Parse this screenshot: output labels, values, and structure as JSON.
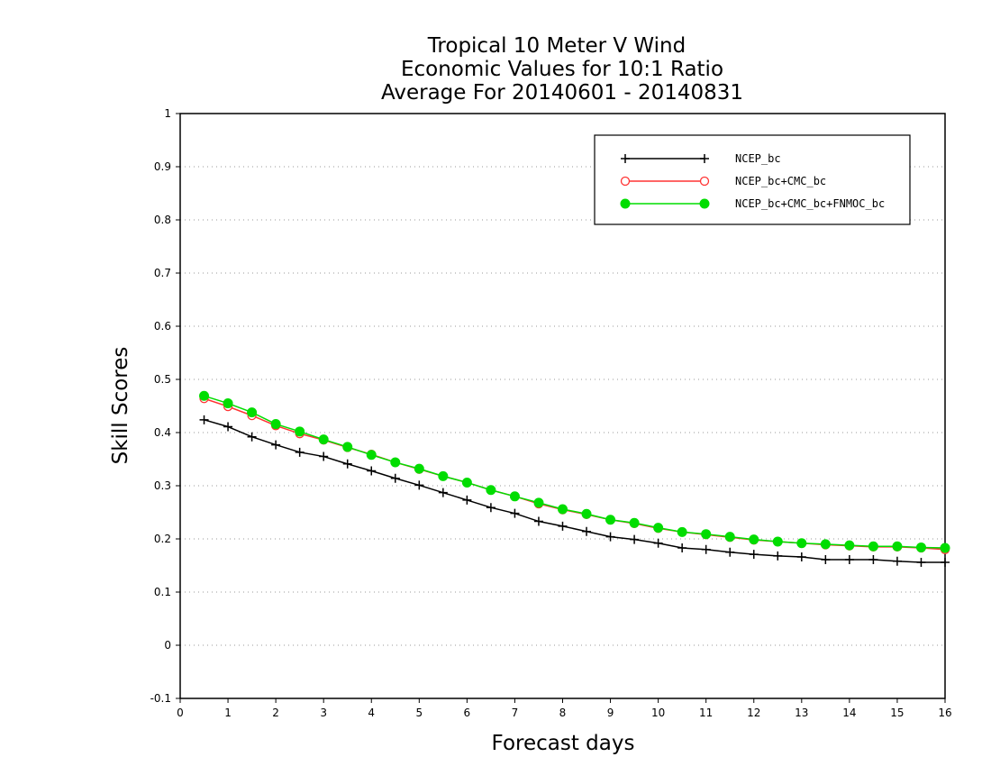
{
  "chart_data": {
    "type": "line",
    "title": [
      "Tropical 10 Meter V Wind",
      "Economic Values for 10:1 Ratio",
      "Average For 20140601 - 20140831"
    ],
    "xlabel": "Forecast days",
    "ylabel": "Skill Scores",
    "xlim": [
      0,
      16
    ],
    "ylim": [
      -0.1,
      1
    ],
    "x_ticks": [
      "0",
      "1",
      "2",
      "3",
      "4",
      "5",
      "6",
      "7",
      "8",
      "9",
      "10",
      "11",
      "12",
      "13",
      "14",
      "15",
      "16"
    ],
    "y_ticks": [
      "-0.1",
      "0",
      "0.1",
      "0.2",
      "0.3",
      "0.4",
      "0.5",
      "0.6",
      "0.7",
      "0.8",
      "0.9",
      "1"
    ],
    "grid": "dotted-horizontal",
    "legend_position": "top-right",
    "x": [
      0.5,
      1,
      1.5,
      2,
      2.5,
      3,
      3.5,
      4,
      4.5,
      5,
      5.5,
      6,
      6.5,
      7,
      7.5,
      8,
      8.5,
      9,
      9.5,
      10,
      10.5,
      11,
      11.5,
      12,
      12.5,
      13,
      13.5,
      14,
      14.5,
      15,
      15.5,
      16
    ],
    "series": [
      {
        "name": "NCEP_bc",
        "color": "#000000",
        "marker": "plus",
        "values": [
          0.424,
          0.411,
          0.392,
          0.377,
          0.363,
          0.355,
          0.341,
          0.328,
          0.314,
          0.301,
          0.287,
          0.273,
          0.259,
          0.248,
          0.233,
          0.224,
          0.214,
          0.204,
          0.199,
          0.192,
          0.183,
          0.18,
          0.175,
          0.171,
          0.168,
          0.166,
          0.161,
          0.161,
          0.161,
          0.158,
          0.156,
          0.156
        ]
      },
      {
        "name": "NCEP_bc+CMC_bc",
        "color": "#ff3333",
        "marker": "open-circle",
        "values": [
          0.464,
          0.449,
          0.432,
          0.413,
          0.398,
          0.386,
          0.372,
          0.359,
          0.344,
          0.331,
          0.318,
          0.306,
          0.292,
          0.28,
          0.266,
          0.255,
          0.246,
          0.236,
          0.229,
          0.22,
          0.213,
          0.208,
          0.203,
          0.198,
          0.195,
          0.192,
          0.189,
          0.187,
          0.185,
          0.185,
          0.183,
          0.18
        ]
      },
      {
        "name": "NCEP_bc+CMC_bc+FNMOC_bc",
        "color": "#00dd00",
        "marker": "filled-circle",
        "values": [
          0.469,
          0.455,
          0.438,
          0.416,
          0.402,
          0.387,
          0.373,
          0.358,
          0.344,
          0.332,
          0.318,
          0.306,
          0.292,
          0.28,
          0.268,
          0.256,
          0.247,
          0.236,
          0.23,
          0.221,
          0.213,
          0.209,
          0.204,
          0.199,
          0.195,
          0.192,
          0.19,
          0.188,
          0.186,
          0.186,
          0.184,
          0.183
        ]
      }
    ]
  }
}
